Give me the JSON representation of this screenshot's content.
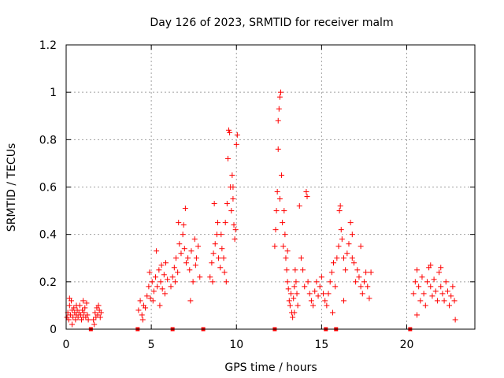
{
  "chart_data": {
    "type": "scatter",
    "title": "Day 126 of 2023, SRMTID for receiver malm",
    "xlabel": "GPS time / hours",
    "ylabel": "SRMTID / TECUs",
    "xlim": [
      0,
      24
    ],
    "ylim": [
      0,
      1.2
    ],
    "xticks": [
      0,
      5,
      10,
      15,
      20
    ],
    "xtick_labels": [
      "0",
      "5",
      "10",
      "15",
      "20"
    ],
    "yticks": [
      0,
      0.2,
      0.4,
      0.6,
      0.8,
      1.0,
      1.2
    ],
    "ytick_labels": [
      "0",
      "0.2",
      "0.4",
      "0.6",
      "0.8",
      "1",
      "1.2"
    ],
    "grid": true,
    "marker": "+",
    "marker_color": "#ff0000",
    "series": [
      {
        "name": "SRMTID",
        "points": [
          [
            0.05,
            0.05
          ],
          [
            0.1,
            0.07
          ],
          [
            0.15,
            0.04
          ],
          [
            0.2,
            0.1
          ],
          [
            0.25,
            0.06
          ],
          [
            0.3,
            0.12
          ],
          [
            0.35,
            0.08
          ],
          [
            0.4,
            0.05
          ],
          [
            0.45,
            0.09
          ],
          [
            0.5,
            0.07
          ],
          [
            0.55,
            0.04
          ],
          [
            0.6,
            0.06
          ],
          [
            0.65,
            0.08
          ],
          [
            0.7,
            0.05
          ],
          [
            0.75,
            0.07
          ],
          [
            0.8,
            0.1
          ],
          [
            0.85,
            0.06
          ],
          [
            0.9,
            0.04
          ],
          [
            0.95,
            0.08
          ],
          [
            1.0,
            0.05
          ],
          [
            1.05,
            0.07
          ],
          [
            1.1,
            0.09
          ],
          [
            1.15,
            0.05
          ],
          [
            1.2,
            0.11
          ],
          [
            1.25,
            0.06
          ],
          [
            1.3,
            0.04
          ],
          [
            0.2,
            0.13
          ],
          [
            0.6,
            0.1
          ],
          [
            1.0,
            0.12
          ],
          [
            0.35,
            0.02
          ],
          [
            1.6,
            0.04
          ],
          [
            1.7,
            0.07
          ],
          [
            1.75,
            0.05
          ],
          [
            1.8,
            0.09
          ],
          [
            1.85,
            0.06
          ],
          [
            1.9,
            0.1
          ],
          [
            1.95,
            0.08
          ],
          [
            2.0,
            0.05
          ],
          [
            2.05,
            0.07
          ],
          [
            1.65,
            0.02
          ],
          [
            4.25,
            0.08
          ],
          [
            4.35,
            0.12
          ],
          [
            4.45,
            0.06
          ],
          [
            4.55,
            0.1
          ],
          [
            4.65,
            0.09
          ],
          [
            4.75,
            0.14
          ],
          [
            4.85,
            0.18
          ],
          [
            4.95,
            0.13
          ],
          [
            5.05,
            0.2
          ],
          [
            5.15,
            0.16
          ],
          [
            5.25,
            0.22
          ],
          [
            5.35,
            0.18
          ],
          [
            5.45,
            0.25
          ],
          [
            5.55,
            0.2
          ],
          [
            5.65,
            0.17
          ],
          [
            5.75,
            0.23
          ],
          [
            5.85,
            0.28
          ],
          [
            5.95,
            0.21
          ],
          [
            4.5,
            0.04
          ],
          [
            5.1,
            0.12
          ],
          [
            5.3,
            0.33
          ],
          [
            5.6,
            0.27
          ],
          [
            5.8,
            0.15
          ],
          [
            4.9,
            0.24
          ],
          [
            5.5,
            0.1
          ],
          [
            6.15,
            0.18
          ],
          [
            6.25,
            0.22
          ],
          [
            6.35,
            0.26
          ],
          [
            6.45,
            0.3
          ],
          [
            6.55,
            0.24
          ],
          [
            6.65,
            0.36
          ],
          [
            6.75,
            0.32
          ],
          [
            6.85,
            0.4
          ],
          [
            6.95,
            0.34
          ],
          [
            7.05,
            0.28
          ],
          [
            7.15,
            0.3
          ],
          [
            7.25,
            0.25
          ],
          [
            7.35,
            0.33
          ],
          [
            7.45,
            0.2
          ],
          [
            7.55,
            0.38
          ],
          [
            7.65,
            0.3
          ],
          [
            7.75,
            0.35
          ],
          [
            7.85,
            0.22
          ],
          [
            6.6,
            0.45
          ],
          [
            6.9,
            0.44
          ],
          [
            7.0,
            0.51
          ],
          [
            7.3,
            0.12
          ],
          [
            6.4,
            0.2
          ],
          [
            7.6,
            0.27
          ],
          [
            8.45,
            0.22
          ],
          [
            8.55,
            0.28
          ],
          [
            8.65,
            0.32
          ],
          [
            8.75,
            0.36
          ],
          [
            8.85,
            0.4
          ],
          [
            8.95,
            0.3
          ],
          [
            9.05,
            0.26
          ],
          [
            9.15,
            0.34
          ],
          [
            9.25,
            0.3
          ],
          [
            9.35,
            0.45
          ],
          [
            9.45,
            0.53
          ],
          [
            9.5,
            0.72
          ],
          [
            9.55,
            0.84
          ],
          [
            9.6,
            0.83
          ],
          [
            9.65,
            0.6
          ],
          [
            9.7,
            0.5
          ],
          [
            9.75,
            0.65
          ],
          [
            9.8,
            0.55
          ],
          [
            9.85,
            0.44
          ],
          [
            9.9,
            0.38
          ],
          [
            9.95,
            0.42
          ],
          [
            10.0,
            0.78
          ],
          [
            10.05,
            0.82
          ],
          [
            8.7,
            0.53
          ],
          [
            8.9,
            0.45
          ],
          [
            9.1,
            0.4
          ],
          [
            9.3,
            0.24
          ],
          [
            9.4,
            0.2
          ],
          [
            9.8,
            0.6
          ],
          [
            8.6,
            0.2
          ],
          [
            12.25,
            0.35
          ],
          [
            12.3,
            0.42
          ],
          [
            12.35,
            0.5
          ],
          [
            12.4,
            0.58
          ],
          [
            12.45,
            0.88
          ],
          [
            12.5,
            0.93
          ],
          [
            12.55,
            0.98
          ],
          [
            12.6,
            1.0
          ],
          [
            12.65,
            0.65
          ],
          [
            12.7,
            0.45
          ],
          [
            12.75,
            0.35
          ],
          [
            12.8,
            0.5
          ],
          [
            12.85,
            0.4
          ],
          [
            12.9,
            0.3
          ],
          [
            12.95,
            0.25
          ],
          [
            13.0,
            0.2
          ],
          [
            13.05,
            0.17
          ],
          [
            13.1,
            0.12
          ],
          [
            13.15,
            0.1
          ],
          [
            13.2,
            0.15
          ],
          [
            13.25,
            0.07
          ],
          [
            13.3,
            0.05
          ],
          [
            13.35,
            0.13
          ],
          [
            13.4,
            0.18
          ],
          [
            13.45,
            0.25
          ],
          [
            13.5,
            0.2
          ],
          [
            13.55,
            0.15
          ],
          [
            13.6,
            0.1
          ],
          [
            13.7,
            0.52
          ],
          [
            13.8,
            0.3
          ],
          [
            13.9,
            0.25
          ],
          [
            14.0,
            0.18
          ],
          [
            14.1,
            0.58
          ],
          [
            14.15,
            0.56
          ],
          [
            14.2,
            0.2
          ],
          [
            14.3,
            0.15
          ],
          [
            14.4,
            0.12
          ],
          [
            14.5,
            0.1
          ],
          [
            14.6,
            0.16
          ],
          [
            14.7,
            0.2
          ],
          [
            14.8,
            0.14
          ],
          [
            14.9,
            0.18
          ],
          [
            15.0,
            0.22
          ],
          [
            15.1,
            0.15
          ],
          [
            15.2,
            0.12
          ],
          [
            15.3,
            0.1
          ],
          [
            12.45,
            0.76
          ],
          [
            12.55,
            0.55
          ],
          [
            13.0,
            0.33
          ],
          [
            13.4,
            0.07
          ],
          [
            15.4,
            0.15
          ],
          [
            15.5,
            0.2
          ],
          [
            15.6,
            0.24
          ],
          [
            15.7,
            0.28
          ],
          [
            15.8,
            0.18
          ],
          [
            15.9,
            0.3
          ],
          [
            16.0,
            0.35
          ],
          [
            16.05,
            0.5
          ],
          [
            16.1,
            0.52
          ],
          [
            16.15,
            0.42
          ],
          [
            16.2,
            0.38
          ],
          [
            16.3,
            0.3
          ],
          [
            16.4,
            0.25
          ],
          [
            16.5,
            0.32
          ],
          [
            16.6,
            0.36
          ],
          [
            16.7,
            0.45
          ],
          [
            16.8,
            0.3
          ],
          [
            16.9,
            0.28
          ],
          [
            17.0,
            0.2
          ],
          [
            17.1,
            0.25
          ],
          [
            17.2,
            0.22
          ],
          [
            17.3,
            0.18
          ],
          [
            17.4,
            0.15
          ],
          [
            17.5,
            0.2
          ],
          [
            17.6,
            0.24
          ],
          [
            17.7,
            0.18
          ],
          [
            17.8,
            0.13
          ],
          [
            17.9,
            0.24
          ],
          [
            16.3,
            0.12
          ],
          [
            16.8,
            0.4
          ],
          [
            17.3,
            0.35
          ],
          [
            15.65,
            0.07
          ],
          [
            20.4,
            0.15
          ],
          [
            20.5,
            0.2
          ],
          [
            20.6,
            0.25
          ],
          [
            20.7,
            0.18
          ],
          [
            20.8,
            0.12
          ],
          [
            20.9,
            0.22
          ],
          [
            21.0,
            0.15
          ],
          [
            21.1,
            0.1
          ],
          [
            21.2,
            0.2
          ],
          [
            21.3,
            0.26
          ],
          [
            21.4,
            0.18
          ],
          [
            21.5,
            0.14
          ],
          [
            21.6,
            0.21
          ],
          [
            21.7,
            0.16
          ],
          [
            21.8,
            0.12
          ],
          [
            21.9,
            0.24
          ],
          [
            22.0,
            0.18
          ],
          [
            22.1,
            0.15
          ],
          [
            22.2,
            0.12
          ],
          [
            22.3,
            0.2
          ],
          [
            22.4,
            0.16
          ],
          [
            22.5,
            0.1
          ],
          [
            22.6,
            0.14
          ],
          [
            22.7,
            0.18
          ],
          [
            22.8,
            0.12
          ],
          [
            22.85,
            0.04
          ],
          [
            20.6,
            0.06
          ],
          [
            21.4,
            0.27
          ],
          [
            22.0,
            0.26
          ]
        ]
      }
    ],
    "gap_markers_x": [
      1.45,
      4.2,
      6.25,
      8.05,
      12.25,
      15.25,
      15.85,
      20.2
    ]
  }
}
